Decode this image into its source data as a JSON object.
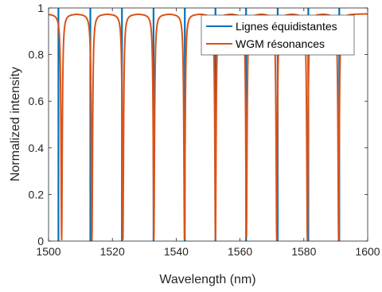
{
  "chart_data": {
    "type": "line",
    "xlabel": "Wavelength (nm)",
    "ylabel": "Normalized intensity",
    "xlim": [
      1500,
      1600
    ],
    "ylim": [
      0,
      1
    ],
    "x_ticks": [
      1500,
      1520,
      1540,
      1560,
      1580,
      1600
    ],
    "y_ticks": [
      0,
      0.2,
      0.4,
      0.6,
      0.8,
      1
    ],
    "x_tick_labels": [
      "1500",
      "1520",
      "1540",
      "1560",
      "1580",
      "1600"
    ],
    "y_tick_labels": [
      "0",
      "0.2",
      "0.4",
      "0.6",
      "0.8",
      "1"
    ],
    "grid": false,
    "legend_position": "top-right",
    "series": [
      {
        "name": "Lignes équidistantes",
        "kind": "vertical-lines",
        "color": "#0072BD",
        "x": [
          1503.1,
          1513.1,
          1523.0,
          1532.9,
          1542.7,
          1552.3,
          1561.9,
          1571.8,
          1581.4,
          1591.1
        ]
      },
      {
        "name": "WGM résonances",
        "kind": "resonance-curve",
        "color": "#D95319",
        "peak_value": 0.975,
        "x_dips": [
          1504.1,
          1513.6,
          1523.3,
          1533.0,
          1542.6,
          1552.3,
          1562.0,
          1571.5,
          1581.1,
          1590.9
        ]
      }
    ]
  }
}
